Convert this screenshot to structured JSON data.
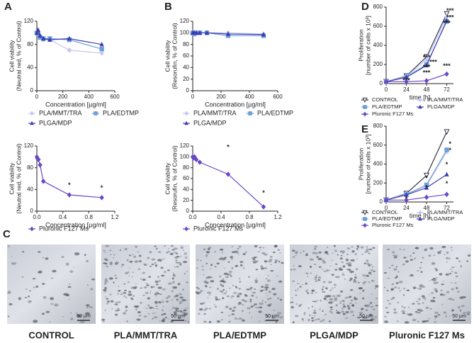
{
  "chart_data": [
    {
      "type": "line",
      "panel": "A",
      "xlabel": "Concentration [µg/ml]",
      "ylabel": [
        "Cell viability",
        "(Neutral red, % of Control)"
      ],
      "x": [
        0,
        10,
        25,
        50,
        100,
        250,
        500
      ],
      "xlim": [
        0,
        600
      ],
      "xticks": [
        0,
        200,
        400,
        600
      ],
      "ylim": [
        0,
        120
      ],
      "yticks": [
        0,
        40,
        80,
        120
      ],
      "series": [
        {
          "name": "PLA/MMT/TRA",
          "color": "#c5c5ee",
          "marker": "diamond",
          "values": [
            100,
            97,
            95,
            88,
            88,
            70,
            65
          ]
        },
        {
          "name": "PLA/EDTMP",
          "color": "#6b9fd6",
          "marker": "square",
          "values": [
            100,
            98,
            92,
            90,
            90,
            88,
            72
          ]
        },
        {
          "name": "PLGA/MDP",
          "color": "#3c3cb4",
          "marker": "triangle",
          "values": [
            100,
            105,
            95,
            90,
            88,
            90,
            80
          ]
        }
      ]
    },
    {
      "type": "line",
      "xlabel": "Concentration [µg/ml]",
      "ylabel": [
        "Cell viability",
        "(Neutral red, % of Control)"
      ],
      "x": [
        0,
        0.01,
        0.025,
        0.05,
        0.1,
        0.5,
        1
      ],
      "xlim": [
        0,
        1.2
      ],
      "xticks": [
        {
          "value": 0,
          "label": "0.0"
        },
        0.4,
        0.8,
        1.2
      ],
      "ylim": [
        0,
        120
      ],
      "yticks": [
        0,
        40,
        80,
        120
      ],
      "series": [
        {
          "name": "Pluronic F127 Ms",
          "color": "#6a48c8",
          "marker": "diamond",
          "values": [
            100,
            97,
            95,
            85,
            55,
            30,
            25
          ]
        }
      ],
      "annotations": [
        {
          "text": "*",
          "x": 0.5,
          "y": 42
        },
        {
          "text": "*",
          "x": 1,
          "y": 37
        }
      ]
    },
    {
      "type": "line",
      "panel": "B",
      "xlabel": "Concentration [µg/ml]",
      "ylabel": [
        "Cell viability",
        "(Resorufin, % of Control)"
      ],
      "x": [
        0,
        10,
        25,
        50,
        100,
        250,
        500
      ],
      "xlim": [
        0,
        600
      ],
      "xticks": [
        0,
        200,
        400,
        600
      ],
      "ylim": [
        0,
        120
      ],
      "yticks": [
        0,
        20,
        40,
        60,
        80,
        100,
        120
      ],
      "series": [
        {
          "name": "PLA/MMT/TRA",
          "color": "#c5c5ee",
          "marker": "diamond",
          "values": [
            100,
            100,
            100,
            100,
            100,
            100,
            98
          ]
        },
        {
          "name": "PLA/EDTMP",
          "color": "#6b9fd6",
          "marker": "square",
          "values": [
            100,
            98,
            100,
            100,
            100,
            95,
            95
          ]
        },
        {
          "name": "PLGA/MDP",
          "color": "#3c3cb4",
          "marker": "triangle",
          "values": [
            100,
            100,
            100,
            100,
            100,
            98,
            97
          ]
        }
      ]
    },
    {
      "type": "line",
      "xlabel": "Concentration [µg/ml]",
      "ylabel": [
        "Cell viability",
        "(Resorufin, % of Control)"
      ],
      "x": [
        0,
        0.01,
        0.025,
        0.05,
        0.1,
        0.5,
        1
      ],
      "xlim": [
        0,
        1.2
      ],
      "xticks": [
        {
          "value": 0,
          "label": "0.0"
        },
        0.4,
        0.8,
        1.2
      ],
      "ylim": [
        0,
        120
      ],
      "yticks": [
        0,
        20,
        40,
        60,
        80,
        100,
        120
      ],
      "series": [
        {
          "name": "Pluronic F127 Ms",
          "color": "#6a48c8",
          "marker": "diamond",
          "values": [
            100,
            98,
            100,
            95,
            90,
            68,
            8
          ]
        }
      ],
      "annotations": [
        {
          "text": "*",
          "x": 0.5,
          "y": 112
        },
        {
          "text": "*",
          "x": 1,
          "y": 28
        }
      ]
    },
    {
      "type": "line",
      "panel": "D",
      "xlabel": "time [h]",
      "ylabel": [
        "Proliferation",
        "[number of cells  x 10³]"
      ],
      "x": [
        0,
        24,
        48,
        72
      ],
      "xlim": [
        0,
        80
      ],
      "xticks": [
        0,
        24,
        48,
        72
      ],
      "ylim": [
        0,
        800
      ],
      "yticks": [
        0,
        200,
        400,
        600,
        800
      ],
      "series": [
        {
          "name": "CONTROL",
          "color": "#333344",
          "marker": "tridown",
          "values": [
            20,
            80,
            280,
            730
          ]
        },
        {
          "name": "PLA/MMT/TRA",
          "color": "#c5c5ee",
          "marker": "diamond",
          "values": [
            20,
            75,
            250,
            700
          ]
        },
        {
          "name": "PLA/EDTMP",
          "color": "#6b9fd6",
          "marker": "square",
          "values": [
            20,
            70,
            200,
            650
          ]
        },
        {
          "name": "PLGA/MDP",
          "color": "#3c3cb4",
          "marker": "triangle",
          "values": [
            20,
            65,
            190,
            660
          ]
        },
        {
          "name": "Pluronic F127 Ms",
          "color": "#6a48c8",
          "marker": "diamond",
          "values": [
            20,
            20,
            30,
            100
          ]
        }
      ],
      "annotations": [
        {
          "text": "***",
          "x": 24,
          "y": 0
        },
        {
          "text": "***",
          "x": 48,
          "y": 140
        },
        {
          "text": "***",
          "x": 48,
          "y": 80
        },
        {
          "text": "***",
          "x": 56,
          "y": 190
        },
        {
          "text": "***",
          "x": 48,
          "y": 240
        },
        {
          "text": "***",
          "x": 72,
          "y": 150
        },
        {
          "text": "***",
          "x": 76,
          "y": 730
        },
        {
          "text": "***",
          "x": 76,
          "y": 660
        },
        {
          "text": "***",
          "x": 72,
          "y": 600
        }
      ]
    },
    {
      "type": "line",
      "panel": "E",
      "xlabel": "time [h]",
      "ylabel": [
        "Proliferation",
        "[number of cells  x 10³]"
      ],
      "x": [
        0,
        24,
        48,
        72
      ],
      "xlim": [
        0,
        80
      ],
      "xticks": [
        0,
        24,
        48,
        72
      ],
      "ylim": [
        0,
        800
      ],
      "yticks": [
        0,
        200,
        400,
        600,
        800
      ],
      "series": [
        {
          "name": "CONTROL",
          "color": "#333344",
          "marker": "tridown",
          "values": [
            20,
            90,
            280,
            740
          ]
        },
        {
          "name": "PLA/MMT/TRA",
          "color": "#c5c5ee",
          "marker": "diamond",
          "values": [
            20,
            85,
            170,
            530
          ]
        },
        {
          "name": "PLA/EDTMP",
          "color": "#6b9fd6",
          "marker": "square",
          "values": [
            20,
            80,
            180,
            550
          ]
        },
        {
          "name": "PLGA/MDP",
          "color": "#3c3cb4",
          "marker": "triangle",
          "values": [
            20,
            75,
            150,
            290
          ]
        },
        {
          "name": "Pluronic F127 Ms",
          "color": "#6a48c8",
          "marker": "diamond",
          "values": [
            20,
            20,
            50,
            80
          ]
        }
      ],
      "annotations": [
        {
          "text": "*",
          "x": 24,
          "y": 0
        },
        {
          "text": "*",
          "x": 48,
          "y": 120
        },
        {
          "text": "*",
          "x": 48,
          "y": 220
        },
        {
          "text": "*",
          "x": 72,
          "y": 160
        },
        {
          "text": "*",
          "x": 72,
          "y": 360
        },
        {
          "text": "*",
          "x": 76,
          "y": 580
        },
        {
          "text": "*",
          "x": 76,
          "y": 510
        }
      ]
    }
  ],
  "images": {
    "panel": "C",
    "items": [
      {
        "label": "CONTROL",
        "scale": "50 µm"
      },
      {
        "label": "PLA/MMT/TRA",
        "scale": "50 µm"
      },
      {
        "label": "PLA/EDTMP",
        "scale": "50 µm"
      },
      {
        "label": "PLGA/MDP",
        "scale": "50 µm"
      },
      {
        "label": "Pluronic F127 Ms",
        "scale": "50 µm"
      }
    ]
  }
}
